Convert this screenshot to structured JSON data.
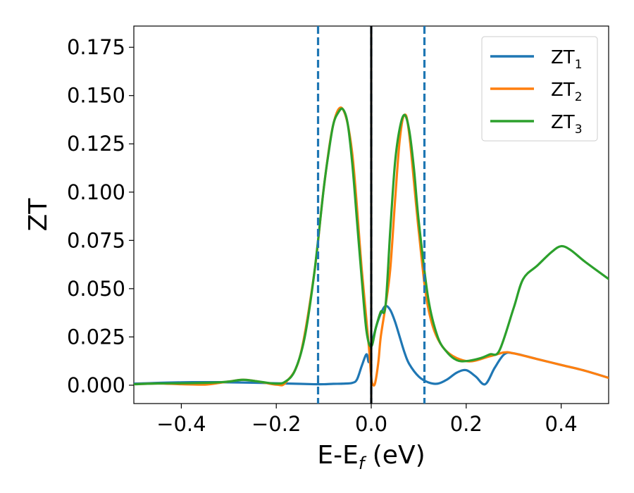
{
  "chart_data": {
    "type": "line",
    "title": "",
    "xlabel": {
      "main": "E-E",
      "sub": "f",
      "tail": " (eV)"
    },
    "ylabel": "ZT",
    "xlim": [
      -0.5,
      0.5
    ],
    "ylim": [
      -0.0095,
      0.186
    ],
    "x_ticks": [
      -0.4,
      -0.2,
      0.0,
      0.2,
      0.4
    ],
    "x_tick_labels": [
      "−0.4",
      "−0.2",
      "0.0",
      "0.2",
      "0.4"
    ],
    "y_ticks": [
      0.0,
      0.025,
      0.05,
      0.075,
      0.1,
      0.125,
      0.15,
      0.175
    ],
    "y_tick_labels": [
      "0.000",
      "0.025",
      "0.050",
      "0.075",
      "0.100",
      "0.125",
      "0.150",
      "0.175"
    ],
    "grid": false,
    "legend_position": "top-right",
    "vlines": [
      {
        "x": -0.112,
        "style": "dashed",
        "color": "#1f77b4"
      },
      {
        "x": 0.0,
        "style": "dashed",
        "color": "#1f77b4"
      },
      {
        "x": 0.112,
        "style": "dashed",
        "color": "#1f77b4"
      },
      {
        "x": 0.0,
        "style": "solid",
        "color": "#000000"
      }
    ],
    "series": [
      {
        "name": "ZT1",
        "label_main": "ZT",
        "label_sub": "1",
        "color": "#1f77b4",
        "x": [
          -0.5,
          -0.45,
          -0.4,
          -0.35,
          -0.3,
          -0.25,
          -0.2,
          -0.15,
          -0.12,
          -0.1,
          -0.08,
          -0.06,
          -0.04,
          -0.03,
          -0.02,
          -0.01,
          -0.005,
          0.0,
          0.01,
          0.02,
          0.03,
          0.04,
          0.05,
          0.06,
          0.07,
          0.08,
          0.1,
          0.12,
          0.14,
          0.16,
          0.18,
          0.2,
          0.22,
          0.24,
          0.26,
          0.28,
          0.3,
          0.35,
          0.4,
          0.45,
          0.5
        ],
        "y": [
          0.0008,
          0.0012,
          0.0015,
          0.0016,
          0.0015,
          0.0013,
          0.001,
          0.0007,
          0.0005,
          0.0005,
          0.0007,
          0.0008,
          0.0012,
          0.003,
          0.01,
          0.016,
          0.012,
          0.02,
          0.03,
          0.037,
          0.041,
          0.039,
          0.033,
          0.025,
          0.017,
          0.011,
          0.0045,
          0.0015,
          0.0008,
          0.003,
          0.0065,
          0.0078,
          0.0045,
          0.0005,
          0.009,
          0.016,
          0.0165,
          0.0135,
          0.0105,
          0.0075,
          0.0038
        ]
      },
      {
        "name": "ZT2",
        "label_main": "ZT",
        "label_sub": "2",
        "color": "#ff7f0e",
        "x": [
          -0.5,
          -0.45,
          -0.4,
          -0.35,
          -0.32,
          -0.3,
          -0.27,
          -0.24,
          -0.2,
          -0.18,
          -0.15,
          -0.12,
          -0.1,
          -0.08,
          -0.06,
          -0.04,
          -0.02,
          -0.005,
          0.0,
          0.003,
          0.008,
          0.015,
          0.02,
          0.03,
          0.04,
          0.05,
          0.06,
          0.07,
          0.08,
          0.1,
          0.12,
          0.15,
          0.2,
          0.25,
          0.28,
          0.3,
          0.35,
          0.4,
          0.45,
          0.5
        ],
        "y": [
          0.0005,
          0.0009,
          0.0005,
          0.0003,
          0.0012,
          0.0019,
          0.0028,
          0.002,
          0.0003,
          0.0015,
          0.015,
          0.058,
          0.102,
          0.135,
          0.143,
          0.12,
          0.06,
          0.02,
          0.004,
          0.0005,
          0.001,
          0.012,
          0.025,
          0.041,
          0.06,
          0.095,
          0.127,
          0.14,
          0.13,
          0.08,
          0.04,
          0.02,
          0.0125,
          0.015,
          0.017,
          0.0165,
          0.0135,
          0.0105,
          0.0075,
          0.0038
        ]
      },
      {
        "name": "ZT3",
        "label_main": "ZT",
        "label_sub": "3",
        "color": "#2ca02c",
        "x": [
          -0.5,
          -0.45,
          -0.4,
          -0.35,
          -0.32,
          -0.3,
          -0.27,
          -0.24,
          -0.2,
          -0.18,
          -0.16,
          -0.14,
          -0.12,
          -0.1,
          -0.09,
          -0.08,
          -0.07,
          -0.06,
          -0.05,
          -0.04,
          -0.03,
          -0.02,
          -0.01,
          0.0,
          0.01,
          0.02,
          0.03,
          0.04,
          0.05,
          0.06,
          0.07,
          0.08,
          0.09,
          0.1,
          0.12,
          0.14,
          0.16,
          0.18,
          0.2,
          0.23,
          0.25,
          0.27,
          0.3,
          0.32,
          0.35,
          0.38,
          0.4,
          0.42,
          0.45,
          0.5
        ],
        "y": [
          0.0005,
          0.0009,
          0.001,
          0.0012,
          0.0015,
          0.0019,
          0.0028,
          0.002,
          0.0008,
          0.002,
          0.008,
          0.025,
          0.058,
          0.102,
          0.12,
          0.135,
          0.141,
          0.143,
          0.136,
          0.115,
          0.085,
          0.055,
          0.028,
          0.02,
          0.03,
          0.038,
          0.041,
          0.08,
          0.115,
          0.133,
          0.14,
          0.132,
          0.112,
          0.085,
          0.045,
          0.025,
          0.017,
          0.013,
          0.0125,
          0.014,
          0.016,
          0.018,
          0.04,
          0.055,
          0.062,
          0.069,
          0.072,
          0.07,
          0.064,
          0.055
        ]
      }
    ]
  }
}
